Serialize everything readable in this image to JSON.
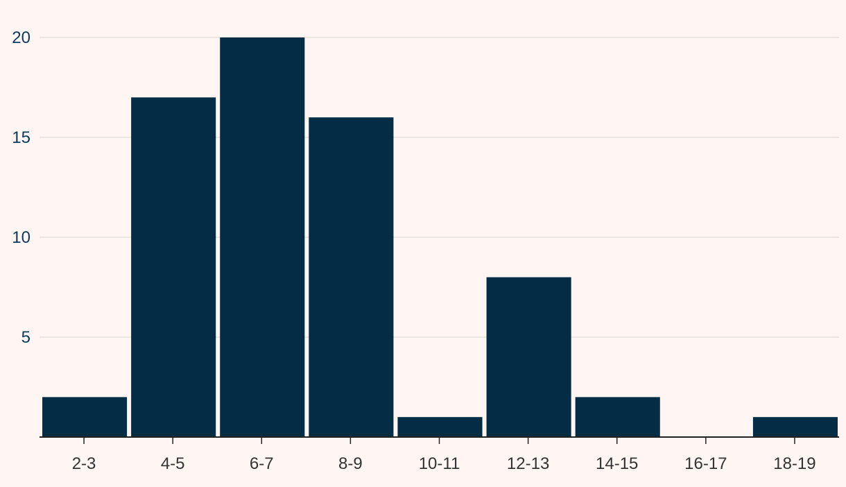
{
  "chart_data": {
    "type": "bar",
    "categories": [
      "2-3",
      "4-5",
      "6-7",
      "8-9",
      "10-11",
      "12-13",
      "14-15",
      "16-17",
      "18-19"
    ],
    "values": [
      2,
      17,
      20,
      16,
      1,
      8,
      2,
      0,
      1
    ],
    "title": "",
    "xlabel": "",
    "ylabel": "",
    "ylim": [
      0,
      20
    ],
    "yticks": [
      5,
      10,
      15,
      20
    ],
    "grid": true,
    "colors": {
      "bar": "#022d45",
      "background": "#fff6f3",
      "grid": "#e6e0de",
      "axis": "#222222"
    }
  }
}
